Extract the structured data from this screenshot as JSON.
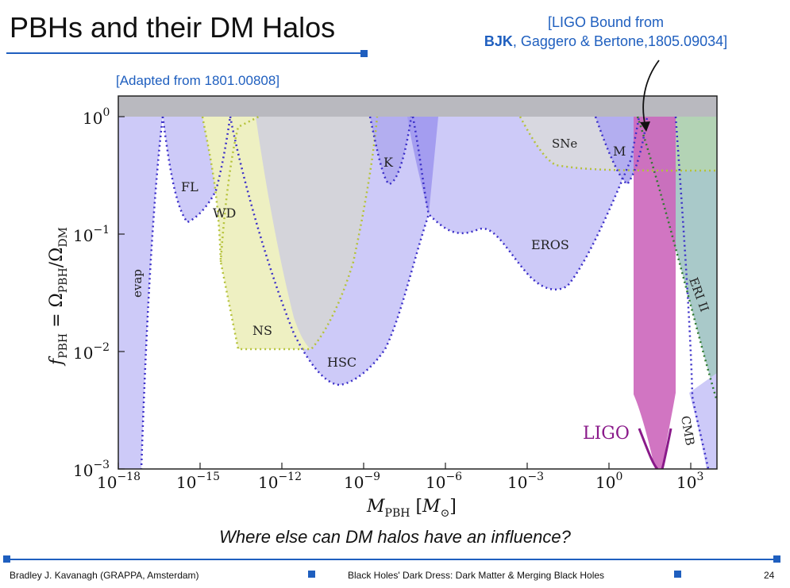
{
  "slide": {
    "title": "PBHs and their DM Halos",
    "ligo_ref_line1": "[LIGO Bound from",
    "ligo_ref_bold": "BJK",
    "ligo_ref_rest": ", Gaggero & Bertone,1805.09034]",
    "adapted": "[Adapted from 1801.00808]",
    "caption": "Where else can DM halos have an influence?",
    "footer_left": "Bradley J. Kavanagh (GRAPPA, Amsterdam)",
    "footer_center": "Black Holes' Dark Dress: Dark Matter & Merging Black Holes",
    "page_number": "24"
  },
  "chart_data": {
    "type": "area",
    "xlabel": "M_PBH [M_⊙]",
    "ylabel": "f_PBH = Ω_PBH/Ω_DM",
    "x_scale": "log",
    "y_scale": "log",
    "xlim": [
      1e-18,
      10000.0
    ],
    "ylim": [
      0.001,
      1.5
    ],
    "xticks": [
      "10^-18",
      "10^-15",
      "10^-12",
      "10^-9",
      "10^-6",
      "10^-3",
      "10^0",
      "10^3"
    ],
    "yticks": [
      "10^0",
      "10^-1",
      "10^-2",
      "10^-3"
    ],
    "regions": [
      {
        "label": "evap",
        "color": "#cdcaf8"
      },
      {
        "label": "FL",
        "color": "#cdcaf8"
      },
      {
        "label": "WD",
        "color": "#eef0c2"
      },
      {
        "label": "NS",
        "color": "#eef0c2"
      },
      {
        "label": "HSC",
        "color": "#cdcaf8"
      },
      {
        "label": "K",
        "color": "#b3aef0"
      },
      {
        "label": "EROS",
        "color": "#cdcaf8"
      },
      {
        "label": "SNe",
        "color": "#d8d8e0"
      },
      {
        "label": "M",
        "color": "#b3aef0"
      },
      {
        "label": "LIGO",
        "color": "#cc66bb"
      },
      {
        "label": "ERI II",
        "color": "#a9c9c9"
      },
      {
        "label": "CMB",
        "color": "#cdcaf8"
      }
    ],
    "curves": {
      "evap": [
        [
          1e-18,
          0.001
        ],
        [
          3e-18,
          0.001
        ],
        [
          1e-17,
          0.02
        ],
        [
          2e-17,
          0.3
        ],
        [
          3e-17,
          1
        ]
      ],
      "fl": [
        [
          1.5e-17,
          1
        ],
        [
          3e-17,
          0.3
        ],
        [
          8e-17,
          0.15
        ],
        [
          3e-16,
          0.13
        ],
        [
          1e-15,
          0.3
        ],
        [
          3e-15,
          1
        ]
      ],
      "hsc": [
        [
          3e-15,
          1
        ],
        [
          1e-14,
          0.3
        ],
        [
          1e-13,
          0.05
        ],
        [
          1e-12,
          0.012
        ],
        [
          1e-11,
          0.006
        ],
        [
          1e-10,
          0.005
        ],
        [
          1e-09,
          0.006
        ],
        [
          1e-08,
          0.01
        ],
        [
          1e-07,
          0.03
        ],
        [
          1e-06,
          0.1
        ],
        [
          3e-06,
          0.15
        ],
        [
          1e-05,
          0.12
        ]
      ],
      "eros": [
        [
          1e-06,
          0.12
        ],
        [
          1e-05,
          0.09
        ],
        [
          0.0001,
          0.1
        ],
        [
          0.001,
          0.08
        ],
        [
          0.01,
          0.04
        ],
        [
          0.03,
          0.033
        ],
        [
          0.1,
          0.04
        ],
        [
          1,
          0.1
        ],
        [
          3,
          0.3
        ],
        [
          10,
          1
        ]
      ],
      "ns_wd": [
        [
          1e-15,
          1
        ],
        [
          3e-15,
          0.1
        ],
        [
          1e-14,
          0.03
        ],
        [
          3e-14,
          0.01
        ],
        [
          1e-11,
          0.01
        ],
        [
          3e-11,
          0.012
        ],
        [
          1e-10,
          0.05
        ],
        [
          1e-09,
          0.3
        ],
        [
          3e-09,
          1
        ]
      ],
      "sne": [
        [
          0.001,
          1
        ],
        [
          0.01,
          0.4
        ],
        [
          1,
          0.33
        ],
        [
          10000.0,
          0.33
        ]
      ],
      "ligo_upper": [
        [
          5,
          1
        ],
        [
          100,
          1
        ]
      ],
      "ligo_lower": [
        [
          5,
          0.004
        ],
        [
          100,
          0.004
        ]
      ]
    }
  }
}
